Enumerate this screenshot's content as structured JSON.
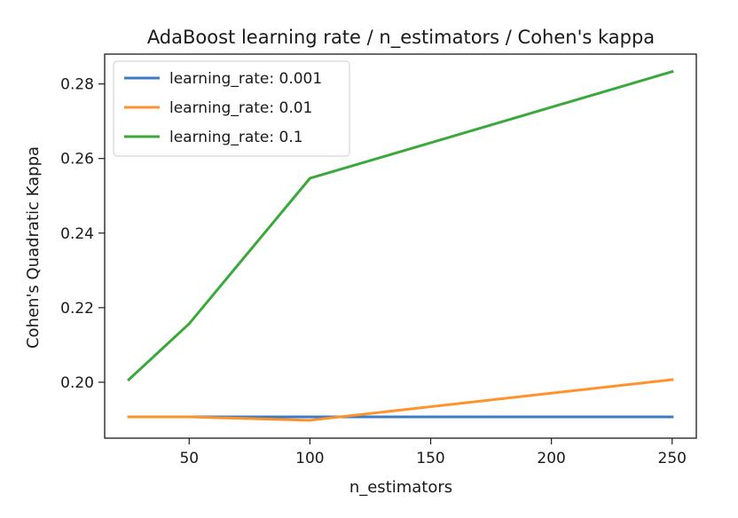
{
  "chart_data": {
    "type": "line",
    "title": "AdaBoost learning rate / n_estimators / Cohen's kappa",
    "xlabel": "n_estimators",
    "ylabel": "Cohen's Quadratic Kappa",
    "x": [
      25,
      50,
      100,
      250
    ],
    "xlim": [
      15,
      260
    ],
    "ylim": [
      0.185,
      0.288
    ],
    "xticks": [
      50,
      100,
      150,
      200,
      250
    ],
    "yticks": [
      0.2,
      0.22,
      0.24,
      0.26,
      0.28
    ],
    "xtick_labels": [
      "50",
      "100",
      "150",
      "200",
      "250"
    ],
    "ytick_labels": [
      "0.20",
      "0.22",
      "0.24",
      "0.26",
      "0.28"
    ],
    "grid": false,
    "legend_position": "top-left",
    "series": [
      {
        "name": "learning_rate: 0.001",
        "color": "#3b7dc4",
        "values": [
          0.1907,
          0.1907,
          0.1907,
          0.1907
        ]
      },
      {
        "name": "learning_rate: 0.01",
        "color": "#ff922b",
        "values": [
          0.1907,
          0.1907,
          0.1898,
          0.2007
        ]
      },
      {
        "name": "learning_rate: 0.1",
        "color": "#3aa83a",
        "values": [
          0.2007,
          0.2157,
          0.2547,
          0.2833
        ]
      }
    ]
  }
}
